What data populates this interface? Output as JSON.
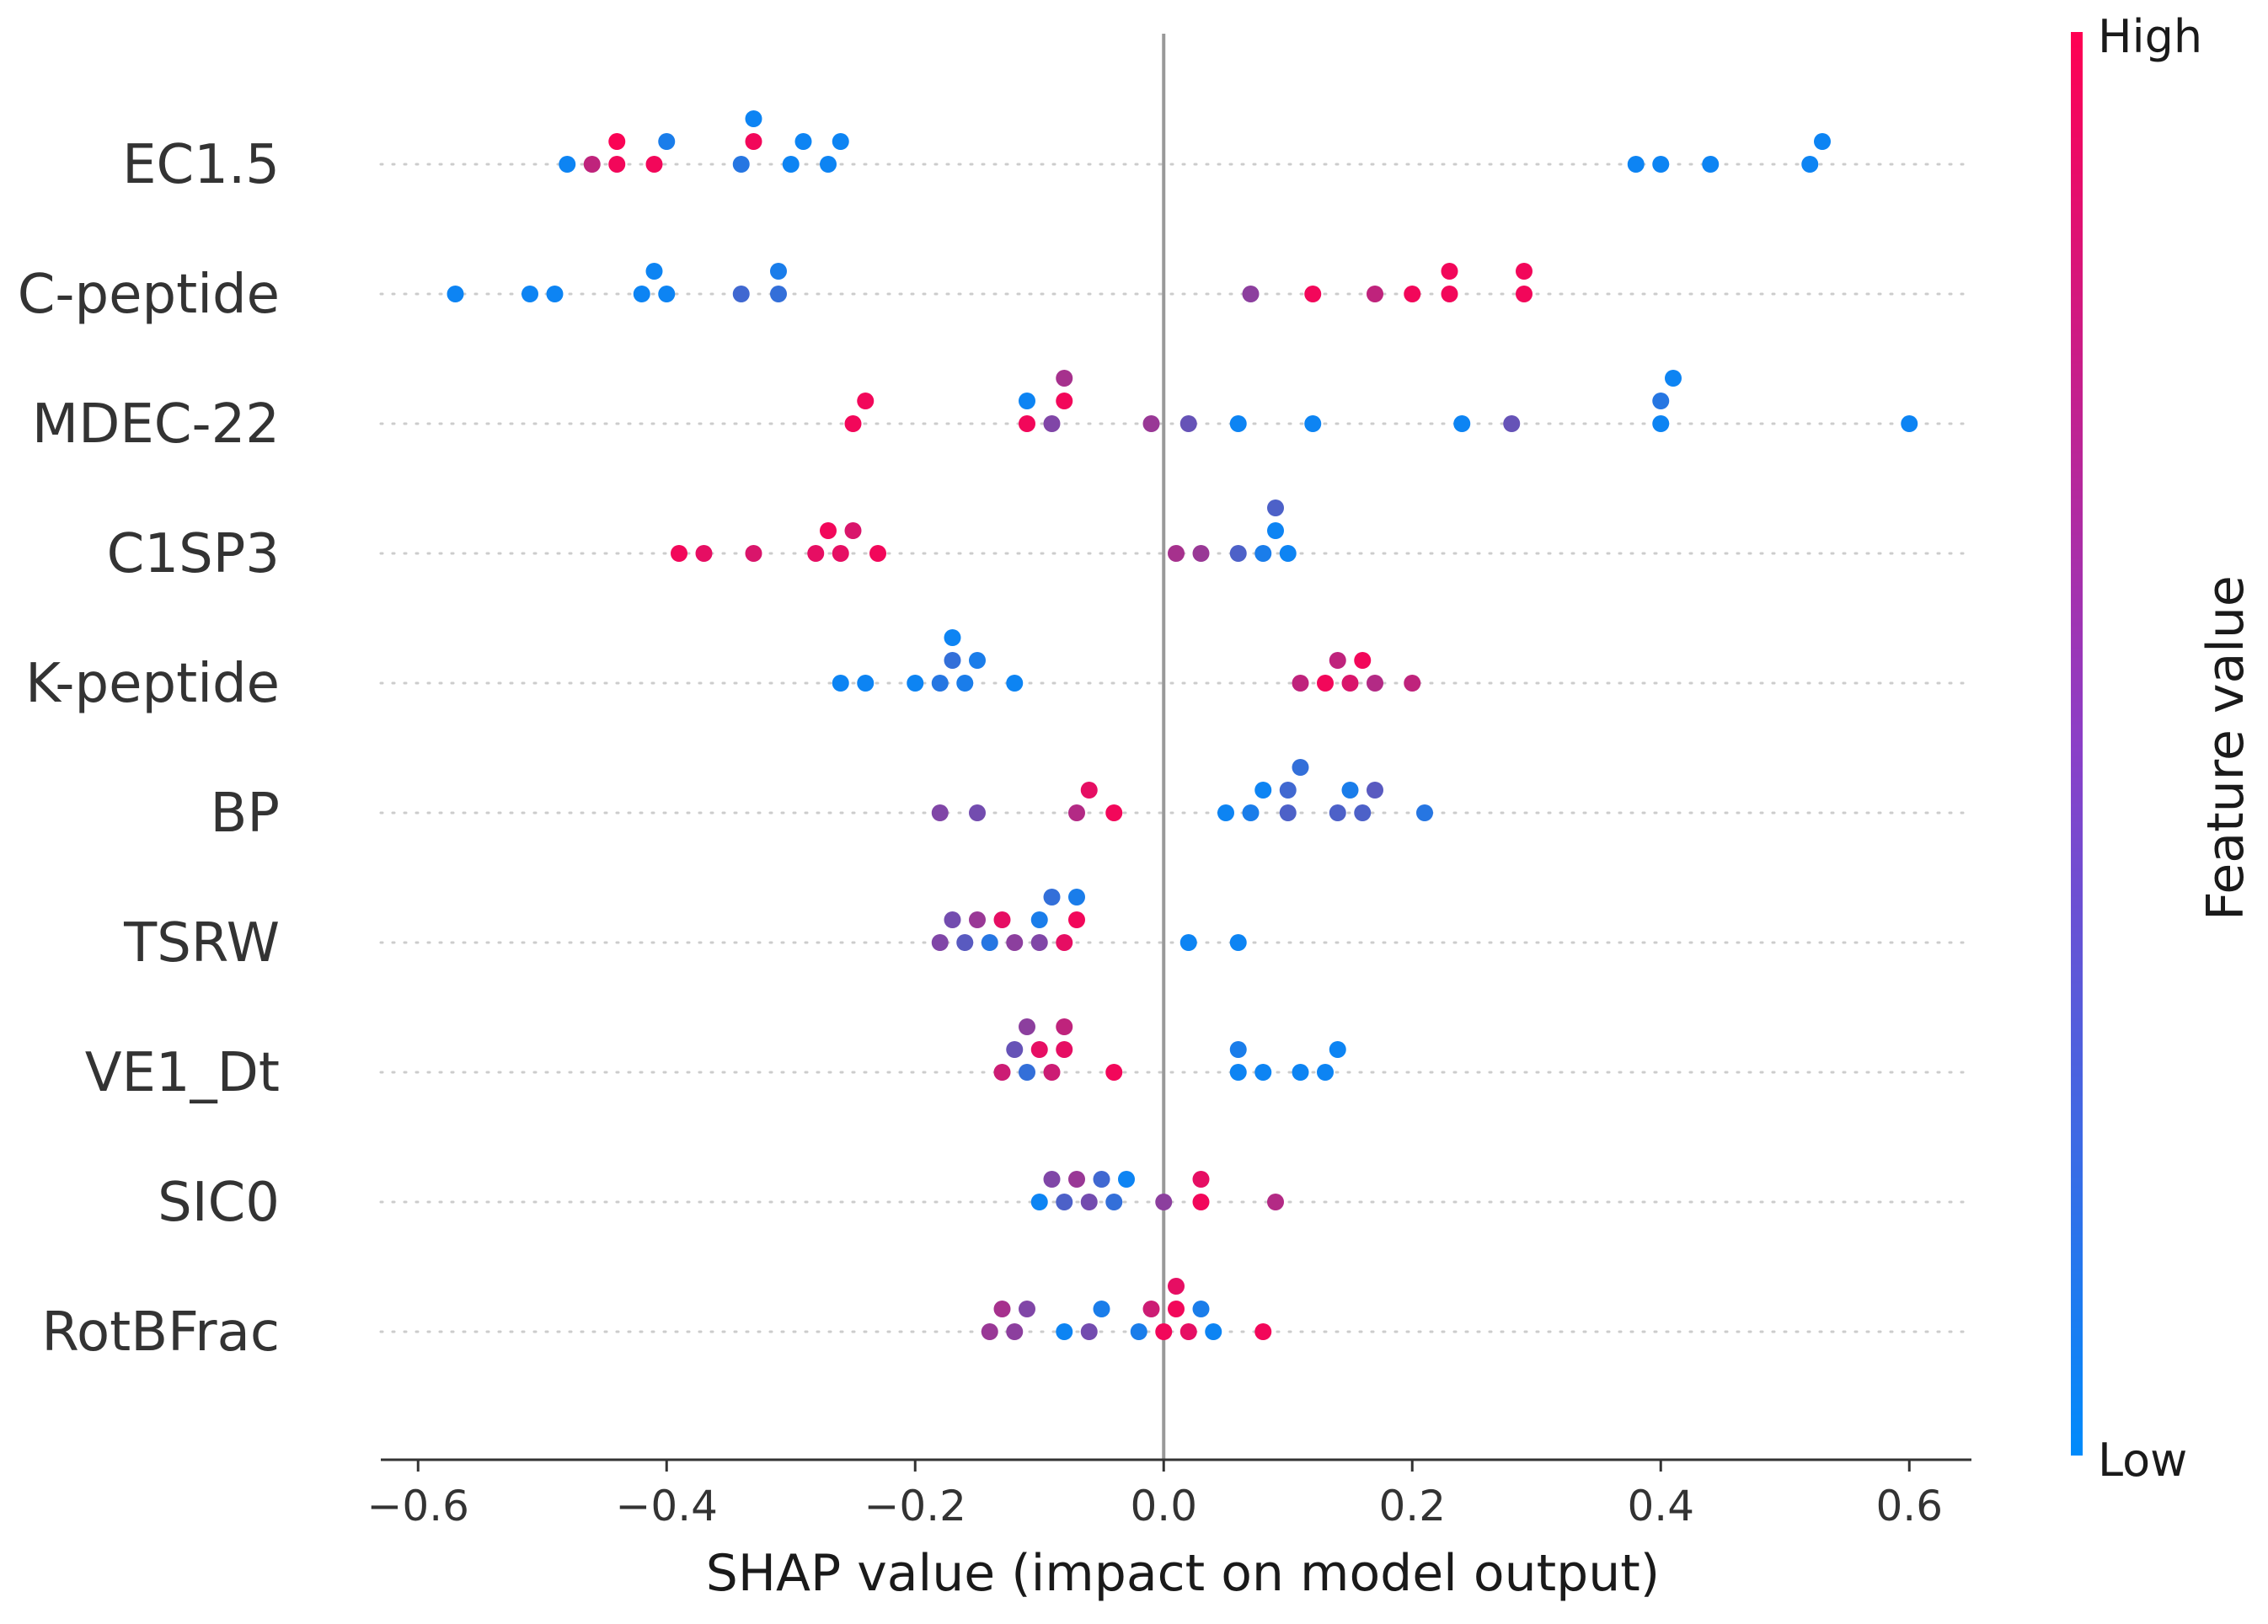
{
  "chart_data": {
    "type": "scatter",
    "xlabel": "SHAP value (impact on model output)",
    "xlim": [
      -0.63,
      0.65
    ],
    "xticks": [
      -0.6,
      -0.4,
      -0.2,
      0.0,
      0.2,
      0.4,
      0.6
    ],
    "xtick_labels": [
      "−0.6",
      "−0.4",
      "−0.2",
      "0.0",
      "0.2",
      "0.4",
      "0.6"
    ],
    "colorbar": {
      "title": "Feature value",
      "high_label": "High",
      "low_label": "Low",
      "low_color": "#008bfb",
      "high_color": "#ff0052"
    },
    "features": [
      "EC1.5",
      "C-peptide",
      "MDEC-22",
      "C1SP3",
      "K-peptide",
      "BP",
      "TSRW",
      "VE1_Dt",
      "SIC0",
      "RotBFrac"
    ],
    "series": [
      {
        "feature": "EC1.5",
        "points": [
          {
            "x": -0.48,
            "v": 0.05
          },
          {
            "x": -0.46,
            "v": 0.75
          },
          {
            "x": -0.44,
            "v": 0.95
          },
          {
            "x": -0.44,
            "v": 0.98
          },
          {
            "x": -0.41,
            "v": 0.95
          },
          {
            "x": -0.4,
            "v": 0.1
          },
          {
            "x": -0.34,
            "v": 0.15
          },
          {
            "x": -0.33,
            "v": 0.95
          },
          {
            "x": -0.33,
            "v": 0.05
          },
          {
            "x": -0.3,
            "v": 0.05
          },
          {
            "x": -0.29,
            "v": 0.05
          },
          {
            "x": -0.27,
            "v": 0.05
          },
          {
            "x": -0.26,
            "v": 0.05
          },
          {
            "x": 0.38,
            "v": 0.05
          },
          {
            "x": 0.4,
            "v": 0.05
          },
          {
            "x": 0.44,
            "v": 0.05
          },
          {
            "x": 0.52,
            "v": 0.05
          },
          {
            "x": 0.53,
            "v": 0.05
          }
        ]
      },
      {
        "feature": "C-peptide",
        "points": [
          {
            "x": -0.57,
            "v": 0.05
          },
          {
            "x": -0.51,
            "v": 0.05
          },
          {
            "x": -0.49,
            "v": 0.05
          },
          {
            "x": -0.42,
            "v": 0.05
          },
          {
            "x": -0.41,
            "v": 0.05
          },
          {
            "x": -0.4,
            "v": 0.05
          },
          {
            "x": -0.34,
            "v": 0.25
          },
          {
            "x": -0.31,
            "v": 0.2
          },
          {
            "x": -0.31,
            "v": 0.1
          },
          {
            "x": 0.07,
            "v": 0.55
          },
          {
            "x": 0.12,
            "v": 0.95
          },
          {
            "x": 0.17,
            "v": 0.75
          },
          {
            "x": 0.2,
            "v": 0.95
          },
          {
            "x": 0.23,
            "v": 0.95
          },
          {
            "x": 0.23,
            "v": 0.95
          },
          {
            "x": 0.29,
            "v": 0.95
          },
          {
            "x": 0.29,
            "v": 0.95
          }
        ]
      },
      {
        "feature": "MDEC-22",
        "points": [
          {
            "x": -0.25,
            "v": 0.95
          },
          {
            "x": -0.24,
            "v": 0.95
          },
          {
            "x": -0.11,
            "v": 0.95
          },
          {
            "x": -0.11,
            "v": 0.05
          },
          {
            "x": -0.09,
            "v": 0.5
          },
          {
            "x": -0.08,
            "v": 0.95
          },
          {
            "x": -0.08,
            "v": 0.65
          },
          {
            "x": -0.01,
            "v": 0.6
          },
          {
            "x": 0.02,
            "v": 0.4
          },
          {
            "x": 0.06,
            "v": 0.05
          },
          {
            "x": 0.12,
            "v": 0.05
          },
          {
            "x": 0.24,
            "v": 0.05
          },
          {
            "x": 0.28,
            "v": 0.4
          },
          {
            "x": 0.4,
            "v": 0.05
          },
          {
            "x": 0.4,
            "v": 0.15
          },
          {
            "x": 0.41,
            "v": 0.05
          },
          {
            "x": 0.6,
            "v": 0.05
          }
        ]
      },
      {
        "feature": "C1SP3",
        "points": [
          {
            "x": -0.39,
            "v": 0.95
          },
          {
            "x": -0.37,
            "v": 0.9
          },
          {
            "x": -0.33,
            "v": 0.85
          },
          {
            "x": -0.28,
            "v": 0.9
          },
          {
            "x": -0.27,
            "v": 0.95
          },
          {
            "x": -0.26,
            "v": 0.9
          },
          {
            "x": -0.25,
            "v": 0.85
          },
          {
            "x": -0.23,
            "v": 0.95
          },
          {
            "x": 0.01,
            "v": 0.65
          },
          {
            "x": 0.03,
            "v": 0.6
          },
          {
            "x": 0.06,
            "v": 0.3
          },
          {
            "x": 0.08,
            "v": 0.1
          },
          {
            "x": 0.09,
            "v": 0.05
          },
          {
            "x": 0.09,
            "v": 0.3
          },
          {
            "x": 0.1,
            "v": 0.05
          }
        ]
      },
      {
        "feature": "K-peptide",
        "points": [
          {
            "x": -0.26,
            "v": 0.05
          },
          {
            "x": -0.24,
            "v": 0.05
          },
          {
            "x": -0.2,
            "v": 0.05
          },
          {
            "x": -0.18,
            "v": 0.15
          },
          {
            "x": -0.17,
            "v": 0.2
          },
          {
            "x": -0.17,
            "v": 0.05
          },
          {
            "x": -0.16,
            "v": 0.1
          },
          {
            "x": -0.15,
            "v": 0.1
          },
          {
            "x": -0.12,
            "v": 0.05
          },
          {
            "x": 0.11,
            "v": 0.75
          },
          {
            "x": 0.13,
            "v": 0.95
          },
          {
            "x": 0.14,
            "v": 0.75
          },
          {
            "x": 0.15,
            "v": 0.85
          },
          {
            "x": 0.16,
            "v": 0.95
          },
          {
            "x": 0.17,
            "v": 0.7
          },
          {
            "x": 0.2,
            "v": 0.75
          }
        ]
      },
      {
        "feature": "BP",
        "points": [
          {
            "x": -0.18,
            "v": 0.5
          },
          {
            "x": -0.15,
            "v": 0.45
          },
          {
            "x": -0.07,
            "v": 0.7
          },
          {
            "x": -0.06,
            "v": 0.9
          },
          {
            "x": -0.04,
            "v": 0.95
          },
          {
            "x": 0.05,
            "v": 0.05
          },
          {
            "x": 0.07,
            "v": 0.1
          },
          {
            "x": 0.08,
            "v": 0.05
          },
          {
            "x": 0.1,
            "v": 0.3
          },
          {
            "x": 0.1,
            "v": 0.25
          },
          {
            "x": 0.11,
            "v": 0.2
          },
          {
            "x": 0.14,
            "v": 0.3
          },
          {
            "x": 0.15,
            "v": 0.1
          },
          {
            "x": 0.16,
            "v": 0.3
          },
          {
            "x": 0.17,
            "v": 0.35
          },
          {
            "x": 0.21,
            "v": 0.15
          }
        ]
      },
      {
        "feature": "TSRW",
        "points": [
          {
            "x": -0.18,
            "v": 0.5
          },
          {
            "x": -0.17,
            "v": 0.45
          },
          {
            "x": -0.16,
            "v": 0.35
          },
          {
            "x": -0.15,
            "v": 0.6
          },
          {
            "x": -0.14,
            "v": 0.15
          },
          {
            "x": -0.13,
            "v": 0.9
          },
          {
            "x": -0.12,
            "v": 0.55
          },
          {
            "x": -0.1,
            "v": 0.5
          },
          {
            "x": -0.1,
            "v": 0.1
          },
          {
            "x": -0.09,
            "v": 0.2
          },
          {
            "x": -0.08,
            "v": 0.9
          },
          {
            "x": -0.07,
            "v": 0.95
          },
          {
            "x": -0.07,
            "v": 0.1
          },
          {
            "x": 0.02,
            "v": 0.05
          },
          {
            "x": 0.06,
            "v": 0.05
          }
        ]
      },
      {
        "feature": "VE1_Dt",
        "points": [
          {
            "x": -0.13,
            "v": 0.8
          },
          {
            "x": -0.12,
            "v": 0.4
          },
          {
            "x": -0.11,
            "v": 0.2
          },
          {
            "x": -0.11,
            "v": 0.55
          },
          {
            "x": -0.1,
            "v": 0.9
          },
          {
            "x": -0.09,
            "v": 0.8
          },
          {
            "x": -0.08,
            "v": 0.9
          },
          {
            "x": -0.08,
            "v": 0.75
          },
          {
            "x": -0.04,
            "v": 0.95
          },
          {
            "x": 0.06,
            "v": 0.05
          },
          {
            "x": 0.06,
            "v": 0.1
          },
          {
            "x": 0.08,
            "v": 0.05
          },
          {
            "x": 0.11,
            "v": 0.05
          },
          {
            "x": 0.13,
            "v": 0.05
          },
          {
            "x": 0.14,
            "v": 0.05
          }
        ]
      },
      {
        "feature": "SIC0",
        "points": [
          {
            "x": -0.1,
            "v": 0.05
          },
          {
            "x": -0.09,
            "v": 0.5
          },
          {
            "x": -0.08,
            "v": 0.3
          },
          {
            "x": -0.07,
            "v": 0.6
          },
          {
            "x": -0.06,
            "v": 0.45
          },
          {
            "x": -0.05,
            "v": 0.25
          },
          {
            "x": -0.04,
            "v": 0.2
          },
          {
            "x": -0.03,
            "v": 0.05
          },
          {
            "x": 0.0,
            "v": 0.55
          },
          {
            "x": 0.03,
            "v": 0.95
          },
          {
            "x": 0.03,
            "v": 0.9
          },
          {
            "x": 0.09,
            "v": 0.7
          }
        ]
      },
      {
        "feature": "RotBFrac",
        "points": [
          {
            "x": -0.14,
            "v": 0.6
          },
          {
            "x": -0.13,
            "v": 0.65
          },
          {
            "x": -0.12,
            "v": 0.55
          },
          {
            "x": -0.11,
            "v": 0.5
          },
          {
            "x": -0.08,
            "v": 0.05
          },
          {
            "x": -0.06,
            "v": 0.45
          },
          {
            "x": -0.05,
            "v": 0.1
          },
          {
            "x": -0.02,
            "v": 0.1
          },
          {
            "x": -0.01,
            "v": 0.8
          },
          {
            "x": 0.0,
            "v": 0.95
          },
          {
            "x": 0.01,
            "v": 0.95
          },
          {
            "x": 0.01,
            "v": 0.9
          },
          {
            "x": 0.02,
            "v": 0.9
          },
          {
            "x": 0.03,
            "v": 0.1
          },
          {
            "x": 0.04,
            "v": 0.05
          },
          {
            "x": 0.08,
            "v": 0.95
          }
        ]
      }
    ]
  }
}
